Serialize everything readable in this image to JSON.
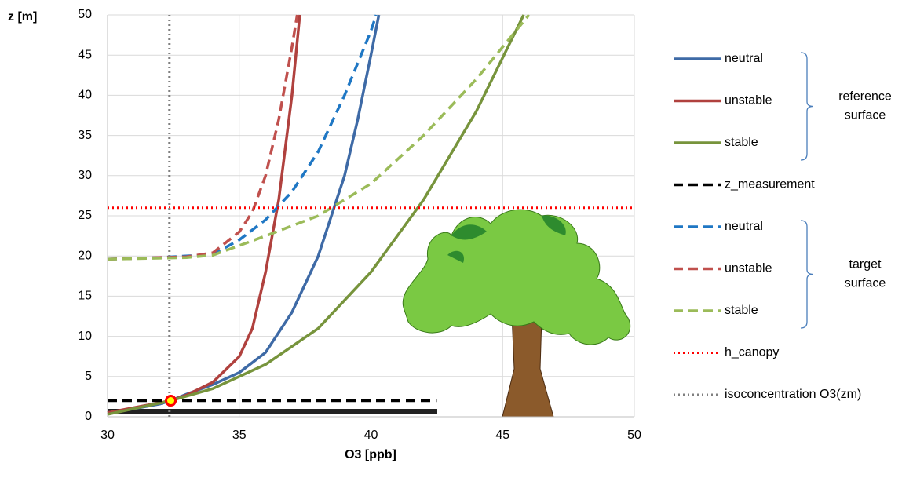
{
  "chart_data": {
    "type": "line",
    "x_label": "O3  [ppb]",
    "y_label": "z  [m]",
    "xlim": [
      30,
      50
    ],
    "xticks": [
      30,
      35,
      40,
      45,
      50
    ],
    "ylim": [
      0,
      50
    ],
    "yticks": [
      0,
      5,
      10,
      15,
      20,
      25,
      30,
      35,
      40,
      45,
      50
    ],
    "grid": true,
    "series": [
      {
        "name": "neutral",
        "color": "#3e6aa6",
        "dash": "solid",
        "x": [
          30,
          31,
          32,
          32.4,
          33,
          34,
          35,
          36,
          37,
          38,
          39,
          39.5,
          40,
          40.3
        ],
        "values": [
          0.5,
          1,
          1.6,
          2,
          2.8,
          4,
          5.5,
          8,
          13,
          20,
          30,
          37,
          45,
          50
        ]
      },
      {
        "name": "unstable",
        "color": "#b0413e",
        "dash": "solid",
        "x": [
          30,
          32.4,
          33,
          34,
          35,
          35.5,
          36,
          36.5,
          37,
          37.3
        ],
        "values": [
          0.5,
          2,
          2.7,
          4.3,
          7.5,
          11,
          18,
          27,
          40,
          50
        ]
      },
      {
        "name": "stable",
        "color": "#77943c",
        "dash": "solid",
        "x": [
          30,
          32.4,
          34,
          36,
          38,
          40,
          42,
          44,
          45.8
        ],
        "values": [
          0.3,
          2,
          3.5,
          6.5,
          11,
          18,
          27,
          38,
          50
        ]
      },
      {
        "name": "z_measurement",
        "color": "#000000",
        "dash": "dashed",
        "x": [
          30,
          42.5
        ],
        "values": [
          2,
          2
        ]
      },
      {
        "name": "neutral",
        "color": "#1f77c4",
        "dash": "dashed",
        "x": [
          30,
          32,
          34,
          35,
          36,
          37,
          38,
          39,
          40,
          40.2
        ],
        "values": [
          19.6,
          19.8,
          20.2,
          22,
          24.5,
          28,
          33,
          40,
          48,
          50
        ]
      },
      {
        "name": "unstable",
        "color": "#c0504d",
        "dash": "dashed",
        "x": [
          30,
          33,
          34,
          35,
          35.5,
          36,
          36.5,
          37,
          37.2
        ],
        "values": [
          19.6,
          19.9,
          20.4,
          23,
          25.5,
          30,
          37,
          46,
          50
        ]
      },
      {
        "name": "stable",
        "color": "#9bbb59",
        "dash": "dashed",
        "x": [
          30,
          33,
          34,
          36,
          38,
          40,
          42,
          44,
          46
        ],
        "values": [
          19.6,
          19.8,
          20.1,
          22.5,
          25,
          29,
          35,
          42,
          50
        ]
      },
      {
        "name": "h_canopy",
        "color": "#ff0000",
        "dash": "dotted",
        "x": [
          30,
          50
        ],
        "values": [
          26,
          26
        ]
      },
      {
        "name": "isoconcentration O3(zm)",
        "color": "#808080",
        "dash": "dotted",
        "x": [
          32.35,
          32.35
        ],
        "values": [
          0,
          50
        ]
      }
    ],
    "legend_groups": [
      {
        "lines": [
          "reference",
          "surface"
        ],
        "from": 0,
        "to": 2
      },
      {
        "lines": [
          "target",
          "surface"
        ],
        "from": 4,
        "to": 6
      }
    ],
    "marker": {
      "x": 32.4,
      "y": 2,
      "color": "#ffff00",
      "edge": "#ff0000"
    }
  }
}
